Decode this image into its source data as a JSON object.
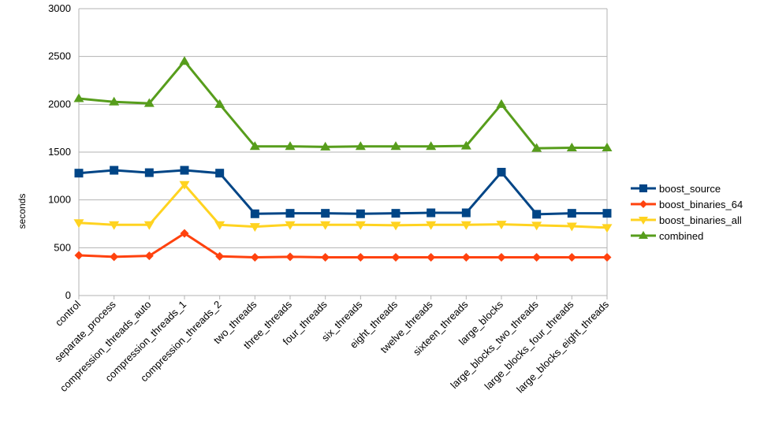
{
  "chart_data": {
    "type": "line",
    "title": "",
    "xlabel": "",
    "ylabel": "seconds",
    "ylim": [
      0,
      3000
    ],
    "yticks": [
      0,
      500,
      1000,
      1500,
      2000,
      2500,
      3000
    ],
    "grid": true,
    "legend_position": "right",
    "categories": [
      "control",
      "separate_process",
      "compression_threads_auto",
      "compression_threads_1",
      "compression_threads_2",
      "two_threads",
      "three_threads",
      "four_threads",
      "six_threads",
      "eight_threads",
      "twelve_threads",
      "sixteen_threads",
      "large_blocks",
      "large_blocks_two_threads",
      "large_blocks_four_threads",
      "large_blocks_eight_threads"
    ],
    "series": [
      {
        "name": "boost_source",
        "color": "#004586",
        "marker": "square",
        "values": [
          1280,
          1310,
          1285,
          1310,
          1280,
          855,
          860,
          860,
          855,
          860,
          865,
          865,
          1290,
          850,
          860,
          860
        ]
      },
      {
        "name": "boost_binaries_64",
        "color": "#ff420e",
        "marker": "diamond",
        "values": [
          420,
          405,
          415,
          650,
          410,
          400,
          405,
          400,
          400,
          400,
          400,
          400,
          400,
          400,
          400,
          400
        ]
      },
      {
        "name": "boost_binaries_all",
        "color": "#ffd320",
        "marker": "triangle-down",
        "values": [
          760,
          740,
          740,
          1160,
          740,
          720,
          740,
          740,
          740,
          735,
          740,
          740,
          745,
          735,
          725,
          710
        ]
      },
      {
        "name": "combined",
        "color": "#579d1c",
        "marker": "triangle-up",
        "values": [
          2060,
          2025,
          2010,
          2450,
          2000,
          1560,
          1560,
          1555,
          1560,
          1560,
          1560,
          1565,
          2000,
          1540,
          1545,
          1545
        ]
      }
    ]
  }
}
